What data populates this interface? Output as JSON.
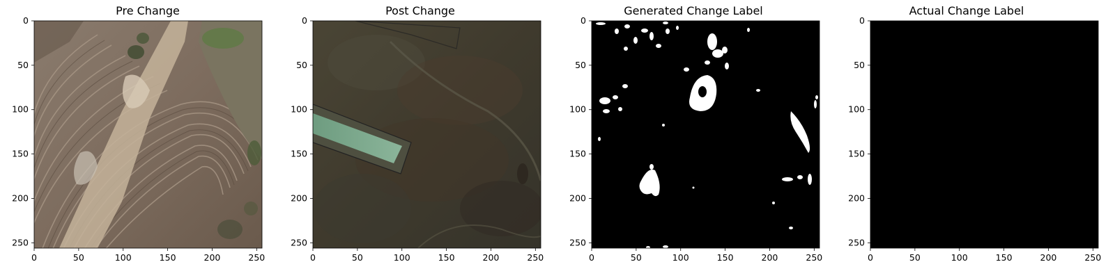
{
  "panels": [
    {
      "title": "Pre Change",
      "content": "aerial photo of plowed field with dirt track",
      "kind": "photo-pre"
    },
    {
      "title": "Post Change",
      "content": "aerial photo of dark field with green rectangular strip",
      "kind": "photo-post"
    },
    {
      "title": "Generated Change Label",
      "content": "binary mask with white change blobs on black",
      "kind": "mask-generated"
    },
    {
      "title": "Actual Change Label",
      "content": "all-black binary mask",
      "kind": "mask-actual"
    }
  ],
  "axes": {
    "xticks": [
      "0",
      "50",
      "100",
      "150",
      "200",
      "250"
    ],
    "yticks": [
      "0",
      "50",
      "100",
      "150",
      "200",
      "250"
    ],
    "extent": [
      0,
      256
    ]
  },
  "colors": {
    "mask_background": "#000000",
    "mask_foreground": "#ffffff",
    "soil_light": "#b9a891",
    "soil_dark": "#6e5f52",
    "grass_dark": "#3d3d2c",
    "strip_green": "#7aa88c"
  }
}
